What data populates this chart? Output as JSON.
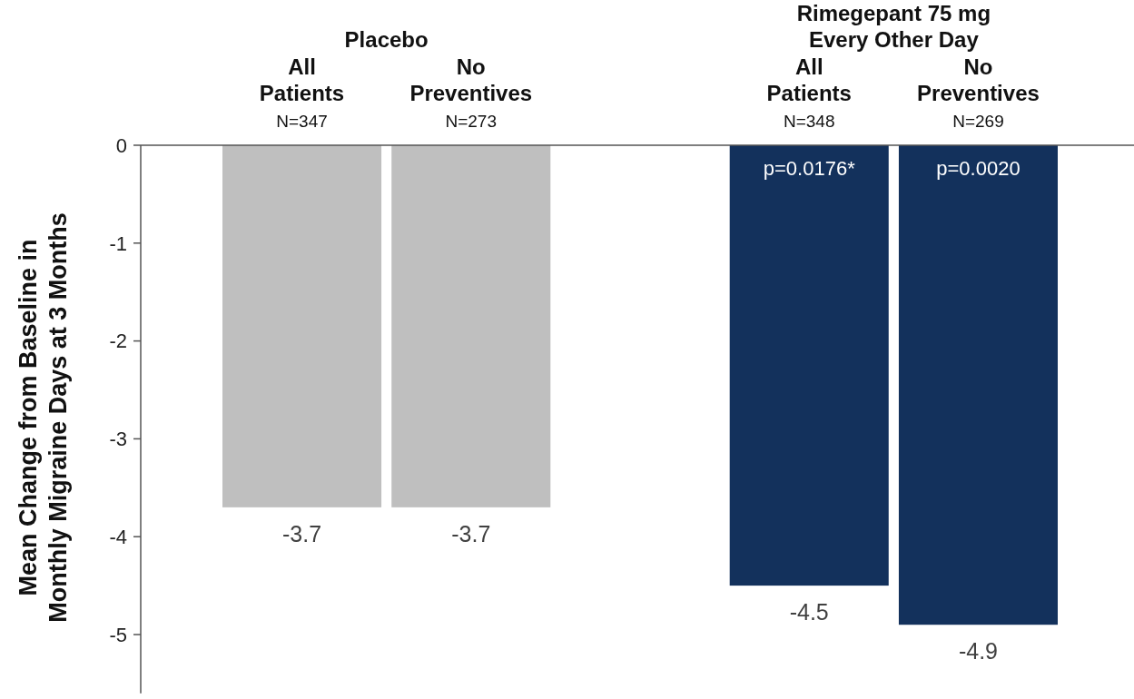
{
  "chart_data": {
    "type": "bar",
    "ylabel": "Mean Change from Baseline in\nMonthly Migraine Days at 3 Months",
    "categories": [
      "All\nPatients\nN=347",
      "No\nPreventives\nN=273",
      null,
      "All\nPatients\nN=348",
      "No\nPreventives\nN=269"
    ],
    "values": [
      -3.7,
      -3.7,
      null,
      -4.5,
      -4.9
    ],
    "colors": [
      "#bfbfbf",
      "#bfbfbf",
      null,
      "#13315c",
      "#13315c"
    ],
    "data_labels": true,
    "annotations": [
      {
        "text": "Placebo"
      },
      {
        "text": "Rimegepant 75 mg\nEvery Other Day"
      },
      {
        "text": "p=0.0176*"
      },
      {
        "text": "p=0.0020"
      }
    ],
    "ylim": [
      -5.6,
      0
    ],
    "yticks": [
      0,
      -1,
      -2,
      -3,
      -4,
      -5
    ],
    "grid": false
  }
}
